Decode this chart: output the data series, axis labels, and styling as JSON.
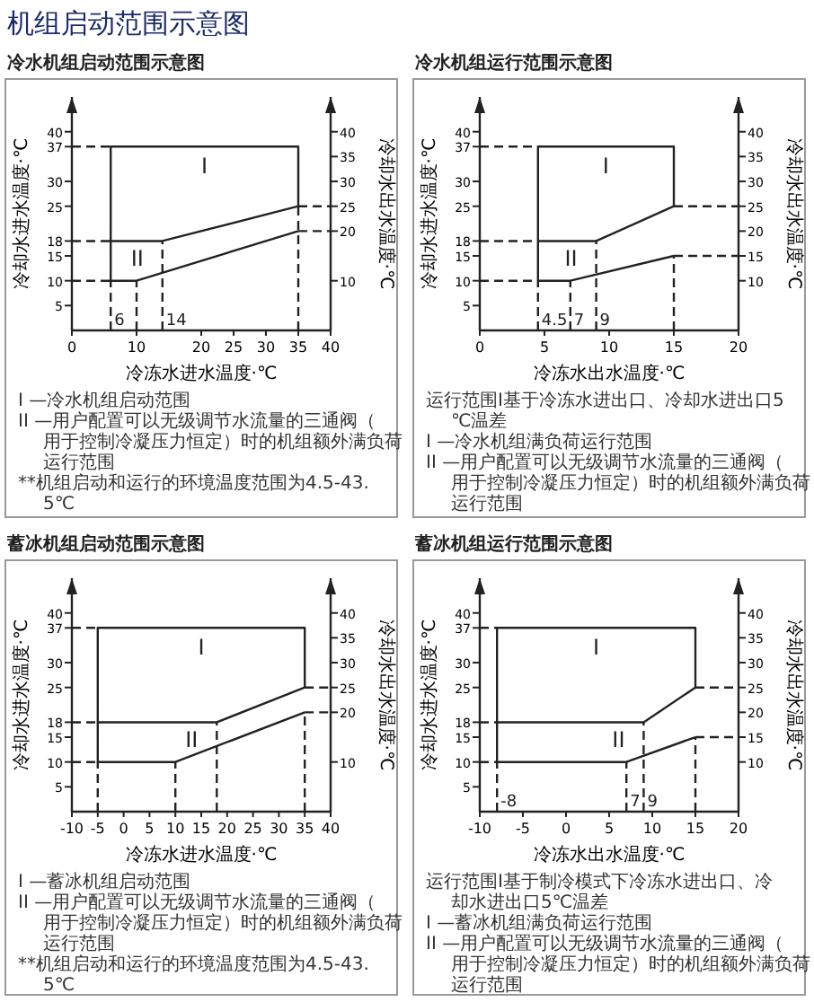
{
  "chart_data": [
    {
      "type": "line",
      "title": "机组启动范围示意图",
      "subtitle": "冷水机组启动范围示意图",
      "xlabel": "冷冻水进水温度·℃",
      "ylabel": "冷却水进水温度·℃",
      "y2label": "冷却水出水温度·℃",
      "xlim": [
        0,
        40
      ],
      "xticks": [
        0,
        10,
        20,
        25,
        30,
        35,
        40
      ],
      "ylim": [
        0,
        47
      ],
      "yticks": [
        5,
        10,
        15,
        18,
        25,
        30,
        37,
        40
      ],
      "y2lim": [
        0,
        47
      ],
      "y2ticks": [
        10,
        20,
        25,
        30,
        35,
        40
      ],
      "series": [
        {
          "type": "line",
          "name": "I",
          "color": "#222222",
          "line_style": "solid",
          "x": [
            35,
            35,
            6,
            6,
            10,
            35
          ],
          "values": [
            25,
            37,
            37,
            10,
            10,
            20
          ]
        },
        {
          "type": "line",
          "name": "II",
          "color": "#222222",
          "line_style": "solid",
          "x": [
            6,
            14,
            35
          ],
          "values": [
            18,
            18,
            25
          ]
        },
        {
          "type": "line",
          "color": "#222222",
          "line_style": "dashed",
          "x": [
            0,
            6
          ],
          "values": [
            37,
            37
          ]
        },
        {
          "type": "line",
          "color": "#222222",
          "line_style": "dashed",
          "x": [
            0,
            6
          ],
          "values": [
            18,
            18
          ]
        },
        {
          "type": "line",
          "color": "#222222",
          "line_style": "dashed",
          "x": [
            0,
            6
          ],
          "values": [
            10,
            10
          ]
        },
        {
          "type": "line",
          "color": "#222222",
          "line_style": "dashed",
          "x": [
            6,
            6
          ],
          "values": [
            0,
            10
          ]
        },
        {
          "type": "line",
          "color": "#222222",
          "line_style": "dashed",
          "x": [
            10,
            10
          ],
          "values": [
            0,
            10
          ]
        },
        {
          "type": "line",
          "color": "#222222",
          "line_style": "dashed",
          "x": [
            14,
            14
          ],
          "values": [
            0,
            18
          ]
        },
        {
          "type": "line",
          "color": "#222222",
          "line_style": "dashed",
          "x": [
            35,
            35
          ],
          "values": [
            0,
            25
          ]
        },
        {
          "type": "line",
          "color": "#222222",
          "line_style": "dashed",
          "x": [
            35,
            40
          ],
          "values": [
            25,
            25
          ]
        },
        {
          "type": "line",
          "color": "#222222",
          "line_style": "dashed",
          "x": [
            35,
            40
          ],
          "values": [
            20,
            20
          ]
        }
      ],
      "annotations": [
        {
          "text": "6",
          "x": 6,
          "y": 1
        },
        {
          "text": "14",
          "x": 14,
          "y": 1
        },
        "I —冷水机组启动范围",
        "II —用户配置可以无级调节水流量的三通阀（用于控制冷凝压力恒定）时的机组额外满负荷运行范围",
        "**机组启动和运行的环境温度范围为4.5-43.5℃"
      ]
    },
    {
      "type": "line",
      "title": "冷水机组运行范围示意图",
      "xlabel": "冷冻水出水温度·℃",
      "ylabel": "冷却水进水温度·℃",
      "y2label": "冷却水出水温度·℃",
      "xlim": [
        0,
        20
      ],
      "xticks": [
        0,
        5,
        10,
        15,
        20
      ],
      "ylim": [
        0,
        47
      ],
      "yticks": [
        5,
        10,
        15,
        18,
        25,
        30,
        37,
        40
      ],
      "y2lim": [
        0,
        47
      ],
      "y2ticks": [
        10,
        15,
        20,
        25,
        30,
        35,
        40
      ],
      "series": [
        {
          "type": "line",
          "name": "I",
          "color": "#222222",
          "line_style": "solid",
          "x": [
            15,
            15,
            4.5,
            4.5,
            7,
            15
          ],
          "values": [
            25,
            37,
            37,
            10,
            10,
            15
          ]
        },
        {
          "type": "line",
          "name": "II",
          "color": "#222222",
          "line_style": "solid",
          "x": [
            4.5,
            9,
            15
          ],
          "values": [
            18,
            18,
            25
          ]
        },
        {
          "type": "line",
          "color": "#222222",
          "line_style": "dashed",
          "x": [
            0,
            4.5
          ],
          "values": [
            37,
            37
          ]
        },
        {
          "type": "line",
          "color": "#222222",
          "line_style": "dashed",
          "x": [
            0,
            4.5
          ],
          "values": [
            18,
            18
          ]
        },
        {
          "type": "line",
          "color": "#222222",
          "line_style": "dashed",
          "x": [
            0,
            4.5
          ],
          "values": [
            10,
            10
          ]
        },
        {
          "type": "line",
          "color": "#222222",
          "line_style": "dashed",
          "x": [
            4.5,
            4.5
          ],
          "values": [
            0,
            10
          ]
        },
        {
          "type": "line",
          "color": "#222222",
          "line_style": "dashed",
          "x": [
            7,
            7
          ],
          "values": [
            0,
            10
          ]
        },
        {
          "type": "line",
          "color": "#222222",
          "line_style": "dashed",
          "x": [
            9,
            9
          ],
          "values": [
            0,
            18
          ]
        },
        {
          "type": "line",
          "color": "#222222",
          "line_style": "dashed",
          "x": [
            15,
            15
          ],
          "values": [
            0,
            15
          ]
        },
        {
          "type": "line",
          "color": "#222222",
          "line_style": "dashed",
          "x": [
            15,
            20
          ],
          "values": [
            25,
            25
          ]
        },
        {
          "type": "line",
          "color": "#222222",
          "line_style": "dashed",
          "x": [
            15,
            20
          ],
          "values": [
            15,
            15
          ]
        }
      ],
      "annotations": [
        {
          "text": "4.5",
          "x": 4.5,
          "y": 1
        },
        {
          "text": "7",
          "x": 7,
          "y": 1
        },
        {
          "text": "9",
          "x": 9,
          "y": 1
        },
        "运行范围I基于冷冻水进出口、冷却水进出口5℃温差",
        "I —冷水机组满负荷运行范围",
        "II —用户配置可以无级调节水流量的三通阀（用于控制冷凝压力恒定）时的机组额外满负荷运行范围"
      ]
    },
    {
      "type": "line",
      "title": "蓄冰机组启动范围示意图",
      "xlabel": "冷冻水进水温度·℃",
      "ylabel": "冷却水进水温度·℃",
      "y2label": "冷却水出水温度·℃",
      "xlim": [
        -10,
        40
      ],
      "xticks": [
        -10,
        -5,
        0,
        5,
        10,
        15,
        20,
        25,
        30,
        35,
        40
      ],
      "ylim": [
        0,
        47
      ],
      "yticks": [
        5,
        10,
        15,
        18,
        25,
        30,
        37,
        40
      ],
      "y2lim": [
        0,
        47
      ],
      "y2ticks": [
        10,
        20,
        25,
        30,
        35,
        40
      ],
      "series": [
        {
          "type": "line",
          "name": "I",
          "color": "#222222",
          "line_style": "solid",
          "x": [
            35,
            35,
            -5,
            -5,
            10,
            35
          ],
          "values": [
            25,
            37,
            37,
            10,
            10,
            20
          ]
        },
        {
          "type": "line",
          "name": "II",
          "color": "#222222",
          "line_style": "solid",
          "x": [
            -5,
            18,
            35
          ],
          "values": [
            18,
            18,
            25
          ]
        },
        {
          "type": "line",
          "color": "#222222",
          "line_style": "dashed",
          "x": [
            -10,
            -5
          ],
          "values": [
            37,
            37
          ]
        },
        {
          "type": "line",
          "color": "#222222",
          "line_style": "dashed",
          "x": [
            -10,
            -5
          ],
          "values": [
            18,
            18
          ]
        },
        {
          "type": "line",
          "color": "#222222",
          "line_style": "dashed",
          "x": [
            -10,
            -5
          ],
          "values": [
            10,
            10
          ]
        },
        {
          "type": "line",
          "color": "#222222",
          "line_style": "dashed",
          "x": [
            -5,
            -5
          ],
          "values": [
            0,
            10
          ]
        },
        {
          "type": "line",
          "color": "#222222",
          "line_style": "dashed",
          "x": [
            10,
            10
          ],
          "values": [
            0,
            10
          ]
        },
        {
          "type": "line",
          "color": "#222222",
          "line_style": "dashed",
          "x": [
            18,
            18
          ],
          "values": [
            0,
            18
          ]
        },
        {
          "type": "line",
          "color": "#222222",
          "line_style": "dashed",
          "x": [
            35,
            35
          ],
          "values": [
            0,
            20
          ]
        },
        {
          "type": "line",
          "color": "#222222",
          "line_style": "dashed",
          "x": [
            35,
            40
          ],
          "values": [
            25,
            25
          ]
        },
        {
          "type": "line",
          "color": "#222222",
          "line_style": "dashed",
          "x": [
            35,
            40
          ],
          "values": [
            20,
            20
          ]
        }
      ],
      "annotations": [
        "I —蓄冰机组启动范围",
        "II —用户配置可以无级调节水流量的三通阀（用于控制冷凝压力恒定）时的机组额外满负荷运行范围",
        "**机组启动和运行的环境温度范围为4.5-43.5℃"
      ]
    },
    {
      "type": "line",
      "title": "蓄冰机组运行范围示意图",
      "xlabel": "冷冻水出水温度·℃",
      "ylabel": "冷却水进水温度·℃",
      "y2label": "冷却水出水温度·℃",
      "xlim": [
        -10,
        20
      ],
      "xticks": [
        -10,
        -5,
        0,
        5,
        10,
        15,
        20
      ],
      "ylim": [
        0,
        47
      ],
      "yticks": [
        5,
        10,
        15,
        18,
        25,
        30,
        37,
        40
      ],
      "y2lim": [
        0,
        47
      ],
      "y2ticks": [
        10,
        15,
        20,
        25,
        30,
        35,
        40
      ],
      "series": [
        {
          "type": "line",
          "name": "I",
          "color": "#222222",
          "line_style": "solid",
          "x": [
            15,
            15,
            -8,
            -8,
            7,
            15
          ],
          "values": [
            25,
            37,
            37,
            10,
            10,
            15
          ]
        },
        {
          "type": "line",
          "name": "II",
          "color": "#222222",
          "line_style": "solid",
          "x": [
            -8,
            9,
            15
          ],
          "values": [
            18,
            18,
            25
          ]
        },
        {
          "type": "line",
          "color": "#222222",
          "line_style": "dashed",
          "x": [
            -10,
            -8
          ],
          "values": [
            37,
            37
          ]
        },
        {
          "type": "line",
          "color": "#222222",
          "line_style": "dashed",
          "x": [
            -10,
            -8
          ],
          "values": [
            18,
            18
          ]
        },
        {
          "type": "line",
          "color": "#222222",
          "line_style": "dashed",
          "x": [
            -10,
            -8
          ],
          "values": [
            10,
            10
          ]
        },
        {
          "type": "line",
          "color": "#222222",
          "line_style": "dashed",
          "x": [
            -8,
            -8
          ],
          "values": [
            0,
            10
          ]
        },
        {
          "type": "line",
          "color": "#222222",
          "line_style": "dashed",
          "x": [
            7,
            7
          ],
          "values": [
            0,
            10
          ]
        },
        {
          "type": "line",
          "color": "#222222",
          "line_style": "dashed",
          "x": [
            9,
            9
          ],
          "values": [
            0,
            18
          ]
        },
        {
          "type": "line",
          "color": "#222222",
          "line_style": "dashed",
          "x": [
            15,
            15
          ],
          "values": [
            0,
            15
          ]
        },
        {
          "type": "line",
          "color": "#222222",
          "line_style": "dashed",
          "x": [
            15,
            20
          ],
          "values": [
            25,
            25
          ]
        },
        {
          "type": "line",
          "color": "#222222",
          "line_style": "dashed",
          "x": [
            15,
            20
          ],
          "values": [
            15,
            15
          ]
        }
      ],
      "annotations": [
        {
          "text": "-8",
          "x": -8,
          "y": 1
        },
        {
          "text": "7",
          "x": 7,
          "y": 1
        },
        {
          "text": "9",
          "x": 9,
          "y": 1
        },
        "运行范围I基于制冷模式下冷冻水进出口、冷却水进出口5℃温差",
        "I —蓄冰机组满负荷运行范围",
        "II —用户配置可以无级调节水流量的三通阀（用于控制冷凝压力恒定）时的机组额外满负荷运行范围"
      ]
    }
  ]
}
